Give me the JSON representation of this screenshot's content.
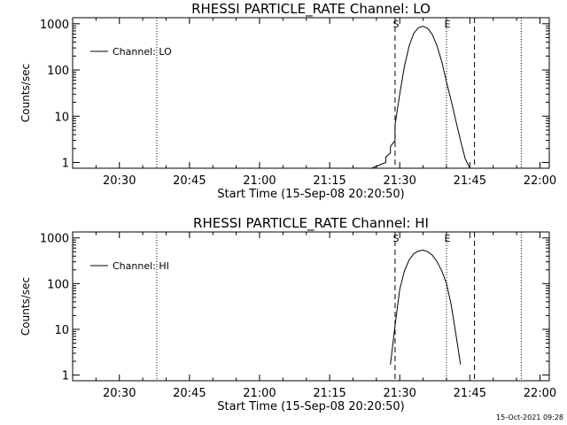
{
  "footer": {
    "date_stamp": "15-Oct-2021 09:28"
  },
  "chart_data": [
    {
      "type": "line",
      "title": "RHESSI PARTICLE_RATE Channel: LO",
      "xlabel": "Start Time (15-Sep-08 20:20:50)",
      "ylabel": "Counts/sec",
      "yscale": "log",
      "ylim": [
        0.75,
        1350
      ],
      "xlim": [
        "20:20",
        "22:02"
      ],
      "x_ticks": [
        "20:30",
        "20:45",
        "21:00",
        "21:15",
        "21:30",
        "21:45",
        "22:00"
      ],
      "y_ticks": [
        "1",
        "10",
        "100",
        "1000"
      ],
      "legend": {
        "position": "top-left",
        "entries": [
          "Channel: LO"
        ]
      },
      "grid": false,
      "series": [
        {
          "name": "Channel: LO",
          "x": [
            "21:24",
            "21:27",
            "21:27",
            "21:28",
            "21:28",
            "21:28",
            "21:29",
            "21:29",
            "21:30",
            "21:31",
            "21:32",
            "21:33",
            "21:34",
            "21:35",
            "21:36",
            "21:37",
            "21:38",
            "21:39",
            "21:40",
            "21:41",
            "21:42",
            "21:43",
            "21:44",
            "21:45"
          ],
          "values": [
            0.75,
            1.0,
            1.3,
            1.6,
            1.6,
            2.2,
            3.0,
            6.5,
            30,
            120,
            330,
            620,
            820,
            880,
            790,
            580,
            330,
            150,
            55,
            22,
            8,
            3,
            1.2,
            0.75
          ]
        }
      ],
      "vertical_lines": [
        {
          "x": "20:38",
          "style": "dotted",
          "label": ""
        },
        {
          "x": "21:29",
          "style": "dashed",
          "label": "S"
        },
        {
          "x": "21:40",
          "style": "dotted",
          "label": "E"
        },
        {
          "x": "21:46",
          "style": "dashed",
          "label": ""
        },
        {
          "x": "21:56",
          "style": "dotted",
          "label": ""
        }
      ]
    },
    {
      "type": "line",
      "title": "RHESSI PARTICLE_RATE Channel: HI",
      "xlabel": "Start Time (15-Sep-08 20:20:50)",
      "ylabel": "Counts/sec",
      "yscale": "log",
      "ylim": [
        0.75,
        1350
      ],
      "xlim": [
        "20:20",
        "22:02"
      ],
      "x_ticks": [
        "20:30",
        "20:45",
        "21:00",
        "21:15",
        "21:30",
        "21:45",
        "22:00"
      ],
      "y_ticks": [
        "1",
        "10",
        "100",
        "1000"
      ],
      "legend": {
        "position": "top-left",
        "entries": [
          "Channel: HI"
        ]
      },
      "grid": false,
      "series": [
        {
          "name": "Channel: HI",
          "x": [
            "21:28",
            "21:29",
            "21:30",
            "21:31",
            "21:32",
            "21:33",
            "21:34",
            "21:35",
            "21:36",
            "21:37",
            "21:38",
            "21:39",
            "21:40",
            "21:41",
            "21:42",
            "21:43"
          ],
          "values": [
            1.7,
            12,
            75,
            190,
            330,
            450,
            520,
            540,
            500,
            420,
            300,
            190,
            100,
            35,
            8,
            1.7
          ]
        }
      ],
      "vertical_lines": [
        {
          "x": "20:38",
          "style": "dotted",
          "label": ""
        },
        {
          "x": "21:29",
          "style": "dashed",
          "label": "S"
        },
        {
          "x": "21:40",
          "style": "dotted",
          "label": "E"
        },
        {
          "x": "21:46",
          "style": "dashed",
          "label": ""
        },
        {
          "x": "21:56",
          "style": "dotted",
          "label": ""
        }
      ]
    }
  ]
}
